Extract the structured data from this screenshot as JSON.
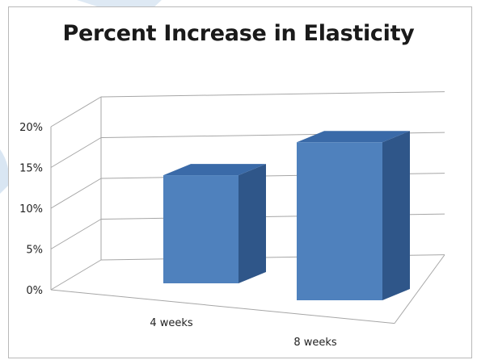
{
  "chart_data": {
    "type": "bar",
    "title": "Percent Increase in Elasticity",
    "categories": [
      "4 weeks",
      "8 weeks"
    ],
    "values": [
      13,
      19
    ],
    "ylim": [
      0,
      20
    ],
    "yticks": [
      "0%",
      "5%",
      "10%",
      "15%",
      "20%"
    ],
    "ytick_values": [
      0,
      5,
      10,
      15,
      20
    ],
    "grid": true,
    "legend": "none",
    "style": "3d-column",
    "colors": {
      "bar_front": "#4f81bd",
      "bar_top": "#3a6aa8",
      "bar_side": "#2f5689",
      "grid": "#a6a6a6"
    }
  }
}
